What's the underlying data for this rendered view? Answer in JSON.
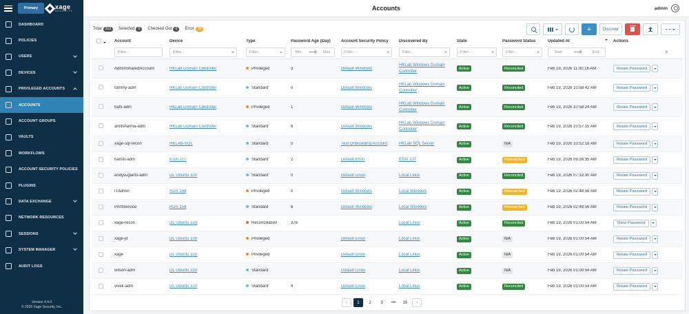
{
  "sidebar": {
    "brand": {
      "primary": "Primary",
      "name": "xage",
      "tagline": "SECURITY"
    },
    "items": [
      {
        "label": "DASHBOARD",
        "icon": "dashboard-icon"
      },
      {
        "label": "POLICIES",
        "icon": "document-icon"
      },
      {
        "label": "USERS",
        "icon": "users-icon"
      },
      {
        "label": "DEVICES",
        "icon": "monitor-icon"
      },
      {
        "label": "PRIVILEGED ACCOUNTS",
        "icon": "shield-icon"
      },
      {
        "label": "ACCOUNTS",
        "icon": "gear-icon"
      },
      {
        "label": "ACCOUNT GROUPS",
        "icon": "group-icon"
      },
      {
        "label": "VAULTS",
        "icon": "vault-icon"
      },
      {
        "label": "WORKFLOWS",
        "icon": "workflow-icon"
      },
      {
        "label": "ACCOUNT SECURITY POLICIES",
        "icon": "lock-icon"
      },
      {
        "label": "PLUGINS",
        "icon": "plug-icon"
      },
      {
        "label": "DATA EXCHANGE",
        "icon": "exchange-icon"
      },
      {
        "label": "NETWORK RESOURCES",
        "icon": "network-icon"
      },
      {
        "label": "SESSIONS",
        "icon": "sessions-icon"
      },
      {
        "label": "SYSTEM MANAGER",
        "icon": "settings-icon"
      },
      {
        "label": "AUDIT LOGS",
        "icon": "log-icon"
      }
    ],
    "version": "Version 4.4.0",
    "copyright": "© 2026 Xage Security, Inc."
  },
  "header": {
    "title": "Accounts",
    "user": "admin"
  },
  "counts": {
    "total_label": "Total",
    "total": "313",
    "selected_label": "Selected",
    "selected": "0",
    "checked_out_label": "Checked Out",
    "checked_out": "0",
    "error_label": "Error",
    "error": "38"
  },
  "toolbar": {
    "discover": "Discover",
    "add": "+"
  },
  "columns": {
    "account": "Account",
    "device": "Device",
    "type": "Type",
    "age": "Password Age (Day)",
    "policy": "Account Security Policy",
    "discovered": "Discovered By",
    "state": "State",
    "pw_status": "Password Status",
    "updated": "Updated At",
    "actions": "Actions"
  },
  "filters": {
    "placeholder": "Filter...",
    "min": "Min",
    "max": "Max",
    "start": "Start",
    "end": "End"
  },
  "rows": [
    {
      "account": "AdminSharedAccount",
      "device": "HKLab Domain Controller",
      "type": "Privileged",
      "type_color": "#f08c28",
      "age": "3",
      "policy": "Default Windows",
      "discovered": "HKLab Windows Domain Controller",
      "state": "Active",
      "pw": "Reconciled",
      "pw_kind": "rec",
      "updated": "Feb 19, 2026 11:00:16 AM",
      "action": "Rotate Password"
    },
    {
      "account": "tommy-adm",
      "device": "HKLab Domain Controller",
      "type": "Standard",
      "type_color": "#6cb8e6",
      "age": "0",
      "policy": "Default Windows",
      "discovered": "HKLab Windows Domain Controller",
      "state": "Active",
      "pw": "Reconciled",
      "pw_kind": "rec",
      "updated": "Feb 19, 2026 10:58:42 AM",
      "action": "Rotate Password"
    },
    {
      "account": "bahi-adm",
      "device": "HKLab Domain Controller",
      "type": "Privileged",
      "type_color": "#f08c28",
      "age": "1",
      "policy": "Default Windows",
      "discovered": "HKLab Windows Domain Controller",
      "state": "Active",
      "pw": "Reconciled",
      "pw_kind": "rec",
      "updated": "Feb 19, 2026 10:58:24 AM",
      "action": "Rotate Password"
    },
    {
      "account": "amitsharma-adm",
      "device": "HKLab Domain Controller",
      "type": "Standard",
      "type_color": "#6cb8e6",
      "age": "6",
      "policy": "Default Windows",
      "discovered": "HKLab Windows Domain Controller",
      "state": "Active",
      "pw": "Reconciled",
      "pw_kind": "rec",
      "updated": "Feb 19, 2026 10:57:15 AM",
      "action": "Rotate Password"
    },
    {
      "account": "xage-sql-recon",
      "device": "HKLAB-SQL",
      "type": "Standard",
      "type_color": "#6cb8e6",
      "age": "0",
      "policy": "Test Onboarding Account",
      "discovered": "HKLab SQL Server",
      "state": "Active",
      "pw": "N/A",
      "pw_kind": "na",
      "updated": "Feb 19, 2026 10:52:18 AM",
      "action": "Rotate Password"
    },
    {
      "account": "harish-adm",
      "device": "ESXi 107",
      "type": "Standard",
      "type_color": "#6cb8e6",
      "age": "2",
      "policy": "Default ESXi",
      "discovered": "ESXi 107",
      "state": "Active",
      "pw": "Mismatched",
      "pw_kind": "mis",
      "updated": "Feb 19, 2026 09:26:35 AM",
      "action": "Rotate Password"
    },
    {
      "account": "andysugiarto-adm",
      "device": "DL Ubuntu 320",
      "type": "Standard",
      "type_color": "#6cb8e6",
      "age": "0",
      "policy": "Default Linux",
      "discovered": "Local Linux",
      "state": "Active",
      "pw": "Reconciled",
      "pw_kind": "rec",
      "updated": "Feb 19, 2026 07:32:30 AM",
      "action": "Rotate Password"
    },
    {
      "account": "ITAdmin",
      "device": "RDS 158",
      "type": "Privileged",
      "type_color": "#f08c28",
      "age": "0",
      "policy": "Default Windows",
      "discovered": "Local Windows",
      "state": "Active",
      "pw": "Mismatched",
      "pw_kind": "mis",
      "updated": "Feb 19, 2026 02:48:58 AM",
      "action": "Rotate Password"
    },
    {
      "account": "PrintService",
      "device": "RDS 158",
      "type": "Standard",
      "type_color": "#6cb8e6",
      "age": "6",
      "policy": "Default Windows",
      "discovered": "Local Windows",
      "state": "Active",
      "pw": "Mismatched",
      "pw_kind": "mis",
      "updated": "Feb 19, 2026 02:48:56 AM",
      "action": "Rotate Password"
    },
    {
      "account": "xage-recon",
      "device": "DL Ubuntu 320",
      "type": "Reconciliation",
      "type_color": "#e0662a",
      "age": "376",
      "policy": "",
      "discovered": "Local Linux",
      "state": "Active",
      "pw": "Reconciled",
      "pw_kind": "rec",
      "updated": "Feb 19, 2026 01:00:54 AM",
      "action": "Show Password"
    },
    {
      "account": "xage-jit",
      "device": "DL Ubuntu 320",
      "type": "Privileged",
      "type_color": "#f08c28",
      "age": "",
      "policy": "Default Linux",
      "discovered": "Local Linux",
      "state": "Active",
      "pw": "N/A",
      "pw_kind": "na",
      "updated": "Feb 19, 2026 01:00:54 AM",
      "action": "Rotate Password"
    },
    {
      "account": "xage",
      "device": "DL Ubuntu 320",
      "type": "Privileged",
      "type_color": "#f08c28",
      "age": "",
      "policy": "Default Linux",
      "discovered": "Local Linux",
      "state": "Active",
      "pw": "N/A",
      "pw_kind": "na",
      "updated": "Feb 19, 2026 01:00:54 AM",
      "action": "Rotate Password"
    },
    {
      "account": "wilson-adm",
      "device": "DL Ubuntu 320",
      "type": "Standard",
      "type_color": "#6cb8e6",
      "age": "",
      "policy": "Default Linux",
      "discovered": "Local Linux",
      "state": "Active",
      "pw": "N/A",
      "pw_kind": "na",
      "updated": "Feb 19, 2026 01:00:54 AM",
      "action": "Rotate Password"
    },
    {
      "account": "vivek-adm",
      "device": "DL Ubuntu 320",
      "type": "Standard",
      "type_color": "#6cb8e6",
      "age": "4",
      "policy": "Default Linux",
      "discovered": "Local Linux",
      "state": "Active",
      "pw": "Reconciled",
      "pw_kind": "rec",
      "updated": "Feb 19, 2026 01:00:54 AM",
      "action": "Rotate Password"
    }
  ],
  "pagination": {
    "prev": "‹",
    "next": "›",
    "pages": [
      "1",
      "2",
      "3",
      "•••",
      "16"
    ],
    "current": "1"
  }
}
